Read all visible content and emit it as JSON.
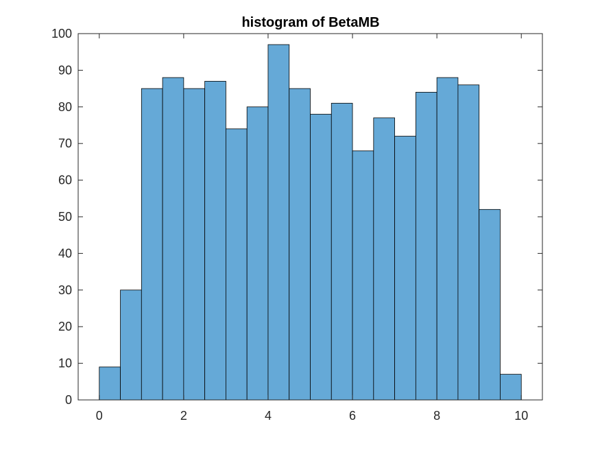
{
  "chart_data": {
    "type": "bar",
    "title": "histogram of BetaMB",
    "xlabel": "",
    "ylabel": "",
    "bin_edges": [
      0,
      0.5,
      1,
      1.5,
      2,
      2.5,
      3,
      3.5,
      4,
      4.5,
      5,
      5.5,
      6,
      6.5,
      7,
      7.5,
      8,
      8.5,
      9,
      9.5,
      10
    ],
    "values": [
      9,
      30,
      85,
      88,
      85,
      87,
      74,
      80,
      97,
      85,
      78,
      81,
      68,
      77,
      72,
      84,
      88,
      86,
      52,
      7
    ],
    "xlim": [
      -0.5,
      10.5
    ],
    "ylim": [
      0,
      100
    ],
    "xticks": [
      0,
      2,
      4,
      6,
      8,
      10
    ],
    "xtick_labels": [
      "0",
      "2",
      "4",
      "6",
      "8",
      "10"
    ],
    "yticks": [
      0,
      10,
      20,
      30,
      40,
      50,
      60,
      70,
      80,
      90,
      100
    ],
    "ytick_labels": [
      "0",
      "10",
      "20",
      "30",
      "40",
      "50",
      "60",
      "70",
      "80",
      "90",
      "100"
    ],
    "grid": false,
    "bar_color": "#65a9d7",
    "edge_color": "#000000"
  }
}
